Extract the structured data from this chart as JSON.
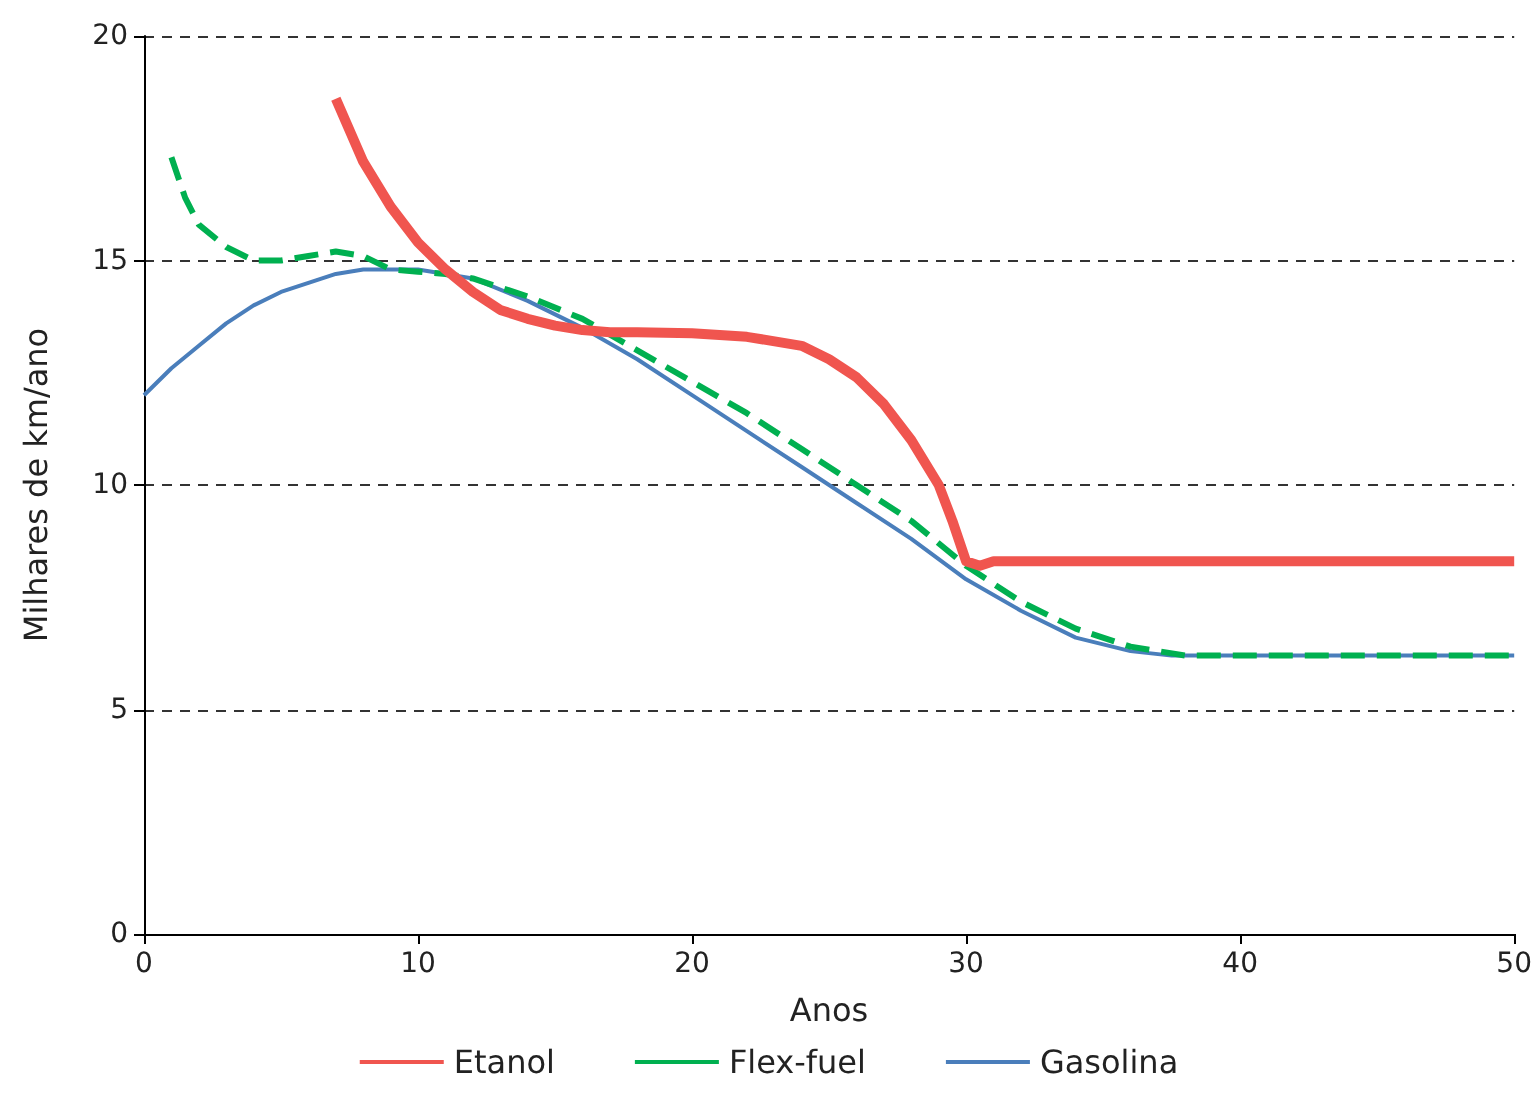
{
  "chart_data": {
    "type": "line",
    "xlabel": "Anos",
    "ylabel": "Milhares de km/ano",
    "xlim": [
      0,
      50
    ],
    "xticks": [
      0,
      10,
      20,
      30,
      40,
      50
    ],
    "ylim": [
      0,
      20
    ],
    "yticks": [
      0,
      5,
      10,
      15,
      20
    ],
    "grid": "y",
    "legend": "bottom",
    "marker": "none",
    "series": [
      {
        "name": "Etanol",
        "color": "#f0554f",
        "line_style": "solid",
        "x": [
          7,
          8,
          9,
          10,
          11,
          12,
          13,
          14,
          15,
          16,
          17,
          18,
          20,
          22,
          24,
          25,
          26,
          27,
          28,
          29,
          29.5,
          30,
          30.5,
          31,
          35,
          40,
          50
        ],
        "values": [
          18.6,
          17.2,
          16.2,
          15.4,
          14.8,
          14.3,
          13.9,
          13.7,
          13.55,
          13.45,
          13.4,
          13.4,
          13.38,
          13.3,
          13.1,
          12.8,
          12.4,
          11.8,
          11.0,
          10.0,
          9.2,
          8.3,
          8.2,
          8.3,
          8.3,
          8.3,
          8.3
        ]
      },
      {
        "name": "Flex-fuel",
        "color": "#00b050",
        "line_style": "dashed",
        "x": [
          1,
          1.5,
          2,
          3,
          4,
          5,
          6,
          7,
          8,
          9,
          10,
          11,
          12,
          14,
          16,
          18,
          20,
          22,
          24,
          26,
          28,
          30,
          32,
          34,
          36,
          38,
          40,
          50
        ],
        "values": [
          17.3,
          16.4,
          15.8,
          15.3,
          15.0,
          15.0,
          15.1,
          15.2,
          15.1,
          14.8,
          14.75,
          14.7,
          14.6,
          14.2,
          13.7,
          13.0,
          12.3,
          11.6,
          10.8,
          10.0,
          9.2,
          8.2,
          7.4,
          6.8,
          6.4,
          6.2,
          6.2,
          6.2
        ]
      },
      {
        "name": "Gasolina",
        "color": "#4a7ebb",
        "line_style": "solid",
        "x": [
          0,
          1,
          2,
          3,
          4,
          5,
          6,
          7,
          8,
          9,
          10,
          11,
          12,
          14,
          16,
          18,
          20,
          22,
          24,
          26,
          28,
          30,
          32,
          34,
          36,
          37.5,
          40,
          50
        ],
        "values": [
          12.0,
          12.6,
          13.1,
          13.6,
          14.0,
          14.3,
          14.5,
          14.7,
          14.8,
          14.8,
          14.8,
          14.7,
          14.6,
          14.1,
          13.5,
          12.8,
          12.0,
          11.2,
          10.4,
          9.6,
          8.8,
          7.9,
          7.2,
          6.6,
          6.3,
          6.2,
          6.2,
          6.2
        ]
      }
    ]
  }
}
